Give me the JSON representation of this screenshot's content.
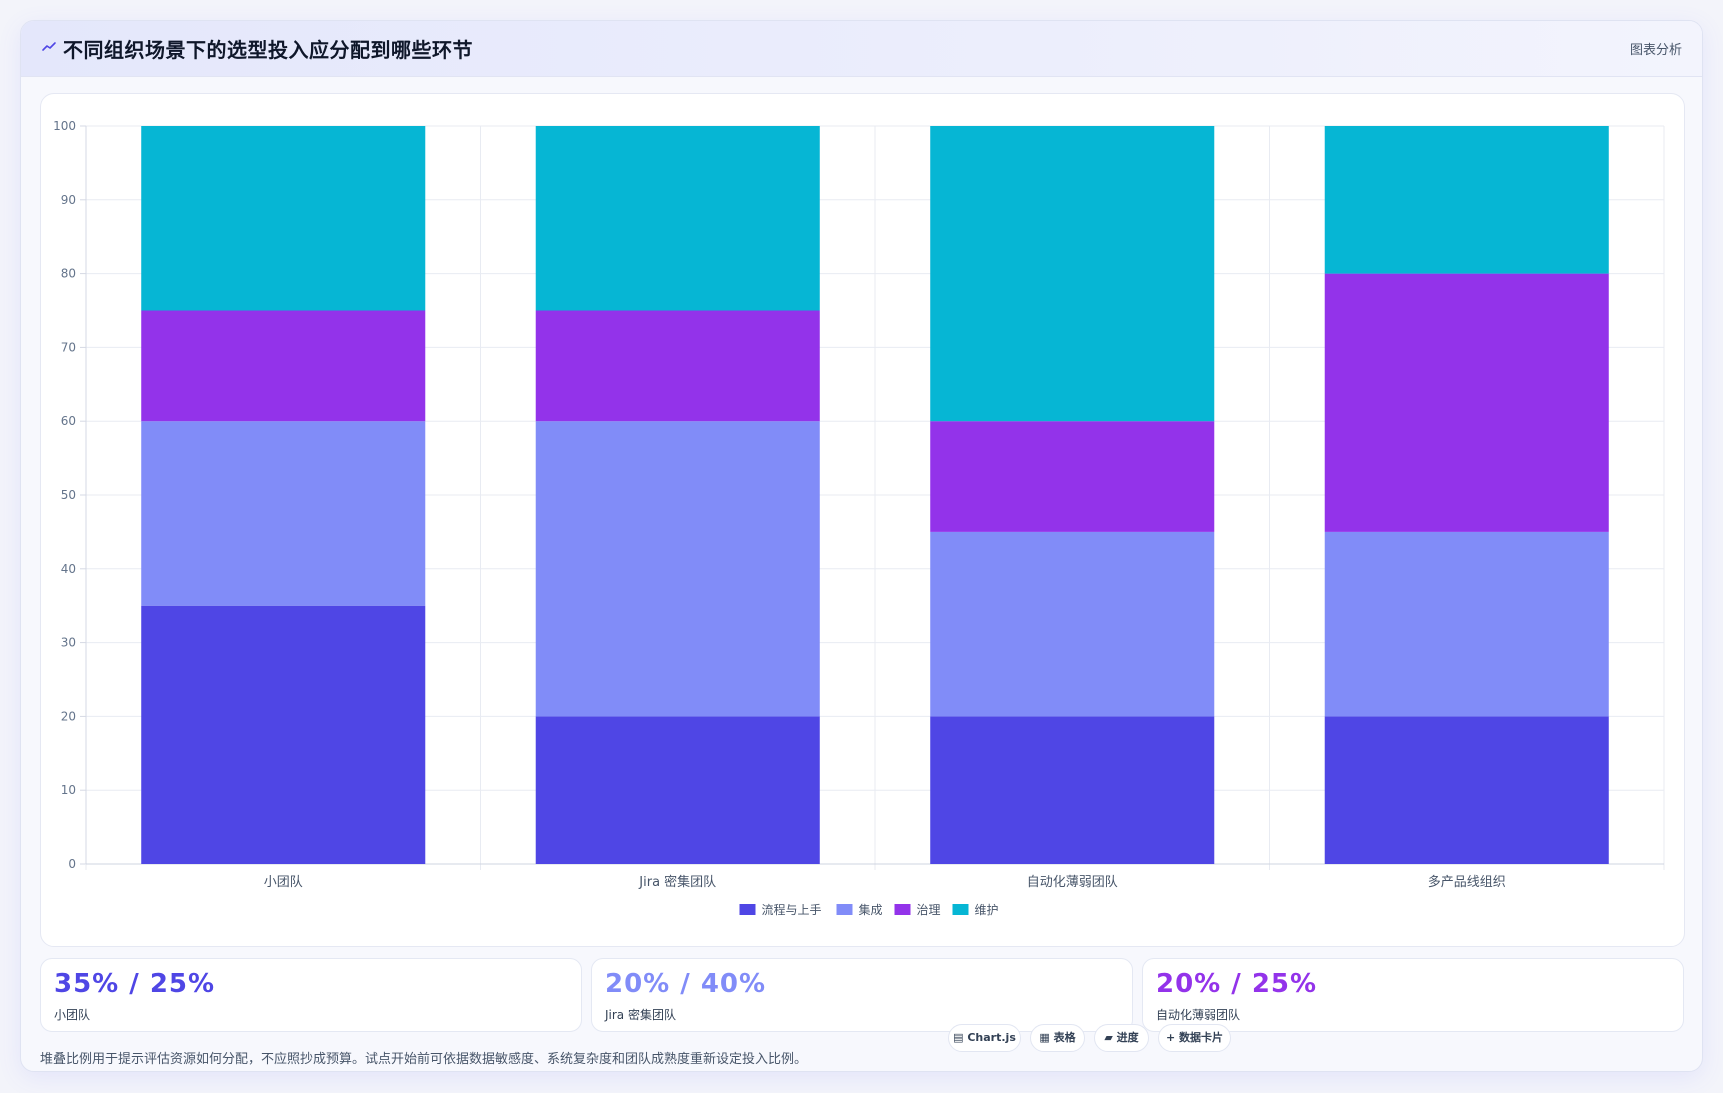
{
  "header": {
    "title": "不同组织场景下的选型投入应分配到哪些环节",
    "action_label": "图表分析",
    "icon": "trend-icon"
  },
  "chart_data": {
    "type": "bar",
    "stacked": true,
    "categories": [
      "小团队",
      "Jira 密集团队",
      "自动化薄弱团队",
      "多产品线组织"
    ],
    "series": [
      {
        "name": "流程与上手",
        "color": "#4f46e5",
        "values": [
          35,
          20,
          20,
          20
        ]
      },
      {
        "name": "集成",
        "color": "#818cf8",
        "values": [
          25,
          40,
          25,
          25
        ]
      },
      {
        "name": "治理",
        "color": "#9333ea",
        "values": [
          15,
          15,
          15,
          35
        ]
      },
      {
        "name": "维护",
        "color": "#06b6d4",
        "values": [
          25,
          25,
          40,
          20
        ]
      }
    ],
    "ylim": [
      0,
      100
    ],
    "yticks": [
      "0",
      "10",
      "20",
      "30",
      "40",
      "50",
      "60",
      "70",
      "80",
      "90",
      "100"
    ],
    "grid": true,
    "legend_position": "bottom"
  },
  "stats": [
    {
      "value": "35% / 25%",
      "label": "小团队",
      "color": "#4f46e5"
    },
    {
      "value": "20% / 40%",
      "label": "Jira 密集团队",
      "color": "#818cf8"
    },
    {
      "value": "20% / 25%",
      "label": "自动化薄弱团队",
      "color": "#9333ea"
    }
  ],
  "footnote": "堆叠比例用于提示评估资源如何分配，不应照抄成预算。试点开始前可依据数据敏感度、系统复杂度和团队成熟度重新设定投入比例。",
  "tags": [
    {
      "icon": "chart-icon",
      "glyph": "▤",
      "label": "Chart.js"
    },
    {
      "icon": "table-icon",
      "glyph": "▦",
      "label": "表格"
    },
    {
      "icon": "progress-icon",
      "glyph": "▰",
      "label": "进度"
    },
    {
      "icon": "card-icon",
      "glyph": "+",
      "label": "数据卡片"
    }
  ]
}
